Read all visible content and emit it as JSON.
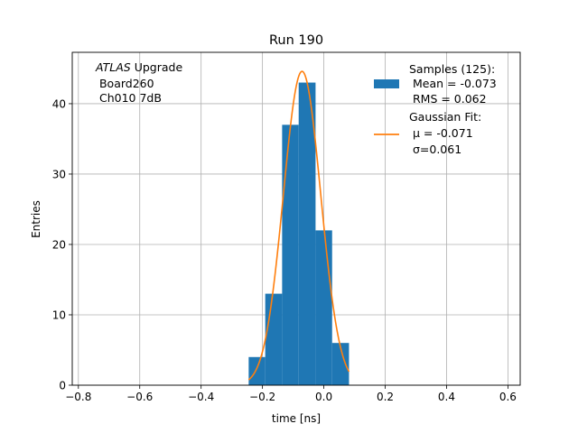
{
  "chart_data": {
    "type": "bar",
    "title": "Run 190",
    "xlabel": "time [ns]",
    "ylabel": "Entries",
    "xlim": [
      -0.82,
      0.64
    ],
    "ylim": [
      0,
      47.3
    ],
    "grid": true,
    "xticks": [
      -0.8,
      -0.6,
      -0.4,
      -0.2,
      0.0,
      0.2,
      0.4,
      0.6
    ],
    "xtick_labels": [
      "−0.8",
      "−0.6",
      "−0.4",
      "−0.2",
      "0.0",
      "0.2",
      "0.4",
      "0.6"
    ],
    "yticks": [
      0,
      10,
      20,
      30,
      40
    ],
    "ytick_labels": [
      "0",
      "10",
      "20",
      "30",
      "40"
    ],
    "histogram": {
      "bin_edges": [
        -0.245,
        -0.191,
        -0.136,
        -0.082,
        -0.027,
        0.027,
        0.082
      ],
      "counts": [
        4,
        13,
        37,
        43,
        22,
        6
      ],
      "color": "#1f77b4"
    },
    "fit": {
      "mu": -0.071,
      "sigma": 0.061,
      "amplitude": 44.6,
      "x_range": [
        -0.245,
        0.082
      ],
      "color": "#ff7f0e"
    },
    "legend_position": "upper right",
    "legend": {
      "samples": [
        "Samples (125):",
        " Mean = -0.073",
        " RMS = 0.062"
      ],
      "fit": [
        "Gaussian Fit:",
        " μ = -0.071",
        " σ=0.061"
      ]
    },
    "annotation": {
      "atlas": "ATLAS",
      "upgrade": " Upgrade",
      "board": " Board260",
      "channel": " Ch010 7dB"
    }
  }
}
